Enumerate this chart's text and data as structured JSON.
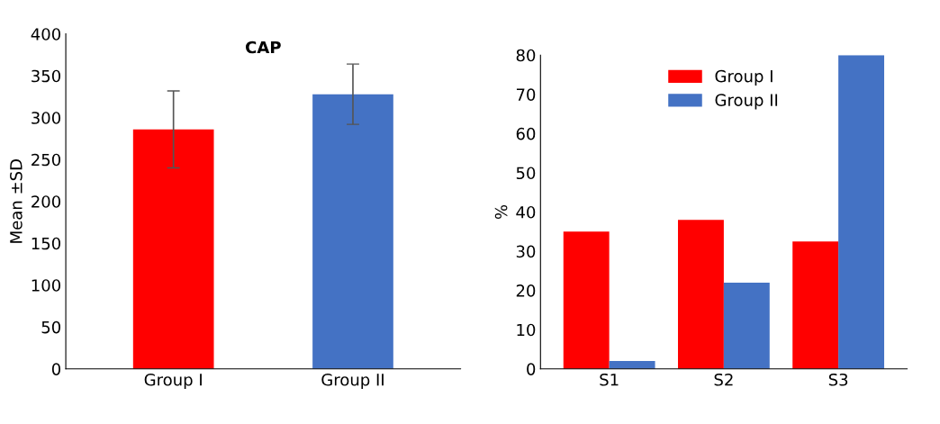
{
  "chart_data": [
    {
      "type": "bar",
      "title": "CAP",
      "ylabel": "Mean ±SD",
      "categories": [
        "Group I",
        "Group II"
      ],
      "values": [
        286,
        328
      ],
      "colors": [
        "#ff0000",
        "#4472c4"
      ],
      "errors": [
        46,
        36
      ],
      "ylim": [
        0,
        400
      ],
      "yticks": [
        0,
        50,
        100,
        150,
        200,
        250,
        300,
        350,
        400
      ]
    },
    {
      "type": "bar",
      "ylabel": "%",
      "categories": [
        "S1",
        "S2",
        "S3"
      ],
      "legend": "top",
      "ylim": [
        0,
        80
      ],
      "yticks": [
        0,
        10,
        20,
        30,
        40,
        50,
        60,
        70,
        80
      ],
      "series": [
        {
          "name": "Group I",
          "color": "#ff0000",
          "values": [
            35,
            38,
            32.5
          ]
        },
        {
          "name": "Group II",
          "color": "#4472c4",
          "values": [
            2,
            22,
            80
          ]
        }
      ]
    }
  ]
}
